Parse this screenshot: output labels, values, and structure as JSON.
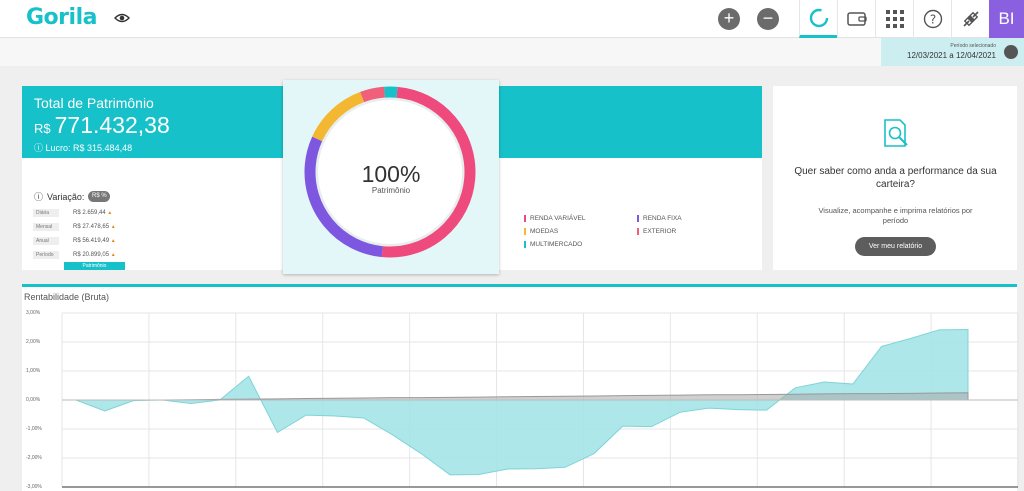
{
  "header": {
    "logo": "Gorila",
    "icons": [
      "eye-icon",
      "plus-icon",
      "minus-icon",
      "performance-icon",
      "wallet-icon",
      "apps-grid-icon",
      "help-icon",
      "connection-icon"
    ],
    "avatar": "BI"
  },
  "period": {
    "label": "Período selecionado",
    "value": "12/03/2021 a 12/04/2021"
  },
  "summary": {
    "title": "Total de Patrimônio",
    "currency": "R$",
    "total": "771.432,38",
    "profit": "Lucro: R$ 315.484,48",
    "variation_label": "Variação:",
    "toggle_left": "R$",
    "toggle_right": "%",
    "rows": [
      {
        "label": "Diária",
        "value": "R$ 2.659,44"
      },
      {
        "label": "Mensal",
        "value": "R$ 27.478,65"
      },
      {
        "label": "Anual",
        "value": "R$ 56.419,49"
      },
      {
        "label": "Período",
        "value": "R$ 20.899,05"
      }
    ],
    "badge": "Patrimônio"
  },
  "donut": {
    "percent": "100%",
    "label": "Patrimônio",
    "colors": {
      "renda_variavel": "#ef4a7d",
      "renda_fixa": "#7e57e0",
      "moedas": "#f4b731",
      "exterior": "#f0607a",
      "multimercado": "#17c1c9"
    }
  },
  "legend": [
    {
      "label": "RENDA VARIÁVEL",
      "color": "#ef4a7d"
    },
    {
      "label": "RENDA FIXA",
      "color": "#7e57e0"
    },
    {
      "label": "MOEDAS",
      "color": "#f4b731"
    },
    {
      "label": "EXTERIOR",
      "color": "#f0607a"
    },
    {
      "label": "MULTIMERCADO",
      "color": "#17c1c9"
    }
  ],
  "report": {
    "title": "Quer saber como anda a performance da sua carteira?",
    "subtitle": "Visualize, acompanhe e imprima relatórios por período",
    "button": "Ver meu relatório"
  },
  "chart_data": {
    "type": "area",
    "title": "Rentabilidade (Bruta)",
    "xlabel": "",
    "ylabel": "",
    "ylim": [
      -3,
      3
    ],
    "yticks": [
      "3,00%",
      "2,00%",
      "1,00%",
      "0,00%",
      "-1,00%",
      "-2,00%",
      "-3,00%"
    ],
    "grid": true,
    "series": [
      {
        "color": "#9fe3e6",
        "values": [
          0.0,
          -0.38,
          -0.02,
          0.0,
          -0.12,
          0.0,
          0.82,
          -1.12,
          -0.52,
          -0.55,
          -0.62,
          -1.2,
          -1.85,
          -2.58,
          -2.57,
          -2.38,
          -2.37,
          -2.32,
          -1.85,
          -0.9,
          -0.92,
          -0.42,
          -0.28,
          -0.33,
          -0.35,
          0.42,
          0.62,
          0.55,
          1.85,
          2.12,
          2.42,
          2.43
        ]
      },
      {
        "color": "#aaaaaa",
        "values": [
          0.0,
          0.0,
          0.0,
          0.0,
          0.01,
          0.02,
          0.03,
          0.04,
          0.05,
          0.06,
          0.07,
          0.08,
          0.08,
          0.09,
          0.1,
          0.11,
          0.12,
          0.13,
          0.14,
          0.15,
          0.16,
          0.17,
          0.18,
          0.18,
          0.19,
          0.2,
          0.21,
          0.22,
          0.22,
          0.23,
          0.24,
          0.25
        ]
      }
    ]
  }
}
